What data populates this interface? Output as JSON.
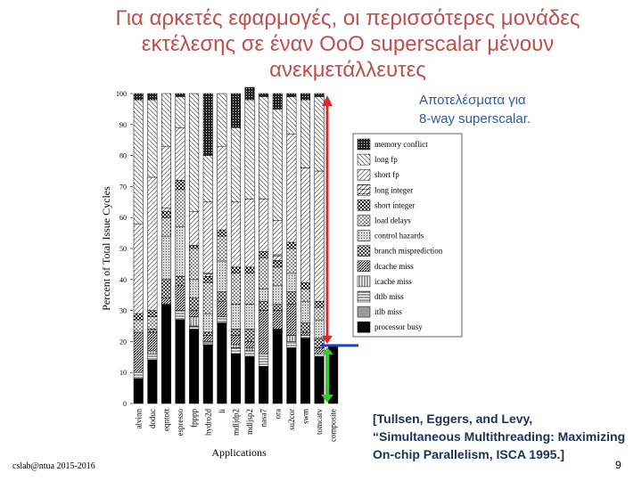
{
  "slide": {
    "title_lines": [
      "Για αρκετές εφαρμογές, οι περισσότερες μονάδες",
      "εκτέλεσης σε έναν OoO superscalar μένουν",
      "ανεκμετάλλευτες"
    ],
    "result_note_lines": [
      "Αποτελέσματα για",
      "8-way superscalar."
    ],
    "citation_lines": [
      "[Tullsen, Eggers, and Levy,",
      "“Simultaneous Multithreading: Maximizing",
      "On-chip Parallelism, ISCA 1995.]"
    ],
    "footer": "cslab@ntua 2015-2016",
    "page_number": "9",
    "colors": {
      "title": "#c0504d",
      "note": "#2e5aa8",
      "citation": "#1f2f55",
      "wasted_arrow": "#e0282c",
      "used_arrow": "#33cc33",
      "divider": "#1e3fc8"
    }
  },
  "chart_data": {
    "type": "bar",
    "stacked": true,
    "xlabel": "Applications",
    "ylabel": "Percent of Total Issue Cycles",
    "ylim": [
      0,
      100
    ],
    "yticks": [
      0,
      10,
      20,
      30,
      40,
      50,
      60,
      70,
      80,
      90,
      100
    ],
    "categories": [
      "alvinn",
      "doduc",
      "eqntott",
      "espresso",
      "fpppp",
      "hydro2d",
      "li",
      "mdljdp2",
      "mdljsp2",
      "nasa7",
      "ora",
      "su2cor",
      "swm",
      "tomcatv",
      "composite"
    ],
    "legend_position": "right",
    "series": [
      {
        "name": "processor busy",
        "pattern": "black",
        "values": [
          8,
          14,
          32,
          27,
          24,
          19,
          26,
          16,
          15,
          12,
          24,
          18,
          21,
          15,
          19
        ]
      },
      {
        "name": "itlb miss",
        "pattern": "gray",
        "values": [
          0,
          0,
          0,
          0,
          0,
          0,
          0,
          0,
          0,
          0,
          0,
          0,
          0,
          0,
          0
        ]
      },
      {
        "name": "dtlb miss",
        "pattern": "hline",
        "values": [
          2,
          2,
          0,
          3,
          1,
          1,
          2,
          2,
          2,
          4,
          0,
          2,
          1,
          1,
          0
        ]
      },
      {
        "name": "icache miss",
        "pattern": "vline",
        "values": [
          0,
          1,
          0,
          0,
          3,
          0,
          0,
          1,
          1,
          0,
          0,
          2,
          0,
          0,
          0
        ]
      },
      {
        "name": "dcache miss",
        "pattern": "fdiag-dense",
        "values": [
          13,
          6,
          2,
          8,
          2,
          2,
          5,
          3,
          2,
          14,
          6,
          10,
          1,
          2,
          0
        ]
      },
      {
        "name": "branch misprediction",
        "pattern": "crosshatch",
        "values": [
          0,
          1,
          6,
          3,
          4,
          1,
          3,
          2,
          4,
          3,
          2,
          4,
          3,
          3,
          0
        ]
      },
      {
        "name": "control hazards",
        "pattern": "stipple",
        "values": [
          0,
          0,
          14,
          16,
          6,
          6,
          10,
          8,
          8,
          4,
          6,
          6,
          7,
          6,
          0
        ]
      },
      {
        "name": "load delays",
        "pattern": "dots",
        "values": [
          4,
          4,
          6,
          12,
          10,
          10,
          8,
          10,
          10,
          10,
          6,
          8,
          4,
          4,
          0
        ]
      },
      {
        "name": "short integer",
        "pattern": "check",
        "values": [
          2,
          2,
          2,
          3,
          1,
          2,
          2,
          2,
          2,
          2,
          2,
          2,
          2,
          2,
          0
        ]
      },
      {
        "name": "long integer",
        "pattern": "hatch",
        "values": [
          0,
          0,
          1,
          0,
          0,
          1,
          0,
          0,
          0,
          0,
          2,
          0,
          0,
          0,
          0
        ]
      },
      {
        "name": "short fp",
        "pattern": "fdiag",
        "values": [
          29,
          43,
          20,
          17,
          11,
          23,
          27,
          21,
          22,
          17,
          11,
          35,
          37,
          42,
          0
        ]
      },
      {
        "name": "long fp",
        "pattern": "bdiag",
        "values": [
          40,
          25,
          17,
          10,
          38,
          15,
          17,
          24,
          32,
          33,
          36,
          12,
          22,
          24,
          0
        ]
      },
      {
        "name": "memory conflict",
        "pattern": "dense",
        "values": [
          2,
          2,
          0,
          1,
          0,
          20,
          0,
          11,
          4,
          1,
          5,
          1,
          2,
          1,
          0
        ]
      }
    ]
  }
}
